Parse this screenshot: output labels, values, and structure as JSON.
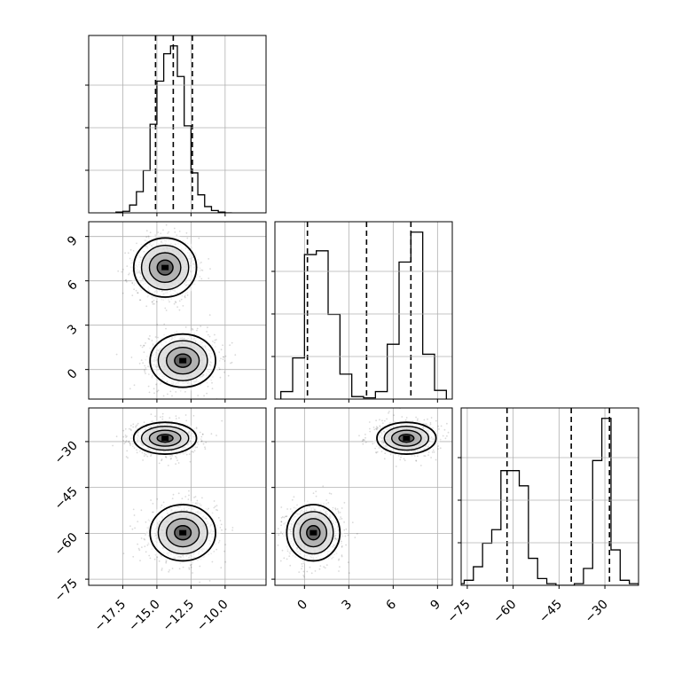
{
  "chart_data": {
    "type": "corner",
    "title": "",
    "grid": true,
    "colors": {
      "line": "#000000",
      "grid": "#b0b0b0",
      "points": "#000000"
    },
    "parameters": [
      {
        "name": "",
        "range": [
          -20.0,
          -7.0
        ],
        "ticks": [
          -17.5,
          -15.0,
          -12.5,
          -10.0
        ],
        "tick_labels": [
          "−17.5",
          "−15.0",
          "−12.5",
          "−10.0"
        ],
        "quantiles": [
          -15.1,
          -13.8,
          -12.4
        ]
      },
      {
        "name": "",
        "range": [
          -2.0,
          10.0
        ],
        "ticks": [
          0,
          3,
          6,
          9
        ],
        "tick_labels": [
          "0",
          "3",
          "6",
          "9"
        ],
        "quantiles": [
          0.2,
          4.2,
          7.2
        ]
      },
      {
        "name": "",
        "range": [
          -77.0,
          -19.0
        ],
        "ticks": [
          -75,
          -60,
          -45,
          -30
        ],
        "tick_labels": [
          "−75",
          "−60",
          "−45",
          "−30"
        ],
        "quantiles": [
          -62.0,
          -41.0,
          -28.5
        ]
      }
    ],
    "histograms": [
      {
        "param": 0,
        "bin_edges": [
          -18.0,
          -17.5,
          -17.0,
          -16.5,
          -16.0,
          -15.5,
          -15.0,
          -14.5,
          -14.0,
          -13.5,
          -13.0,
          -12.5,
          -12.0,
          -11.5,
          -11.0,
          -10.5,
          -10.0,
          -9.5
        ],
        "counts": [
          1,
          2,
          10,
          27,
          54,
          113,
          168,
          203,
          213,
          174,
          111,
          51,
          23,
          8,
          3,
          1,
          0
        ]
      },
      {
        "param": 1,
        "bin_edges": [
          -1.6,
          -0.8,
          0.0,
          0.8,
          1.6,
          2.4,
          3.2,
          4.0,
          4.8,
          5.6,
          6.4,
          7.2,
          8.0,
          8.8,
          9.6
        ],
        "counts": [
          6,
          33,
          116,
          119,
          68,
          20,
          2,
          1,
          6,
          44,
          110,
          134,
          36,
          7
        ]
      },
      {
        "param": 2,
        "bin_edges": [
          -79,
          -76,
          -73,
          -70,
          -67,
          -64,
          -61,
          -58,
          -55,
          -52,
          -49,
          -46,
          -43,
          -40,
          -37,
          -34,
          -31,
          -28,
          -25,
          -22,
          -19
        ],
        "counts": [
          1,
          3,
          11,
          25,
          33,
          68,
          68,
          59,
          16,
          4,
          1,
          0,
          0,
          1,
          10,
          74,
          99,
          21,
          3,
          1
        ]
      }
    ],
    "clusters": [
      {
        "weight": 0.5,
        "means": [
          -14.4,
          6.9,
          -28.9
        ],
        "sds": [
          1.15,
          1.0,
          2.6
        ]
      },
      {
        "weight": 0.5,
        "means": [
          -13.1,
          0.6,
          -59.8
        ],
        "sds": [
          1.2,
          0.9,
          4.6
        ]
      }
    ],
    "panels": [
      {
        "row": 0,
        "col": 0,
        "kind": "hist"
      },
      {
        "row": 1,
        "col": 0,
        "kind": "density",
        "x_param": 0,
        "y_param": 1
      },
      {
        "row": 1,
        "col": 1,
        "kind": "hist"
      },
      {
        "row": 2,
        "col": 0,
        "kind": "density",
        "x_param": 0,
        "y_param": 2
      },
      {
        "row": 2,
        "col": 1,
        "kind": "density",
        "x_param": 1,
        "y_param": 2
      },
      {
        "row": 2,
        "col": 2,
        "kind": "hist"
      }
    ]
  }
}
